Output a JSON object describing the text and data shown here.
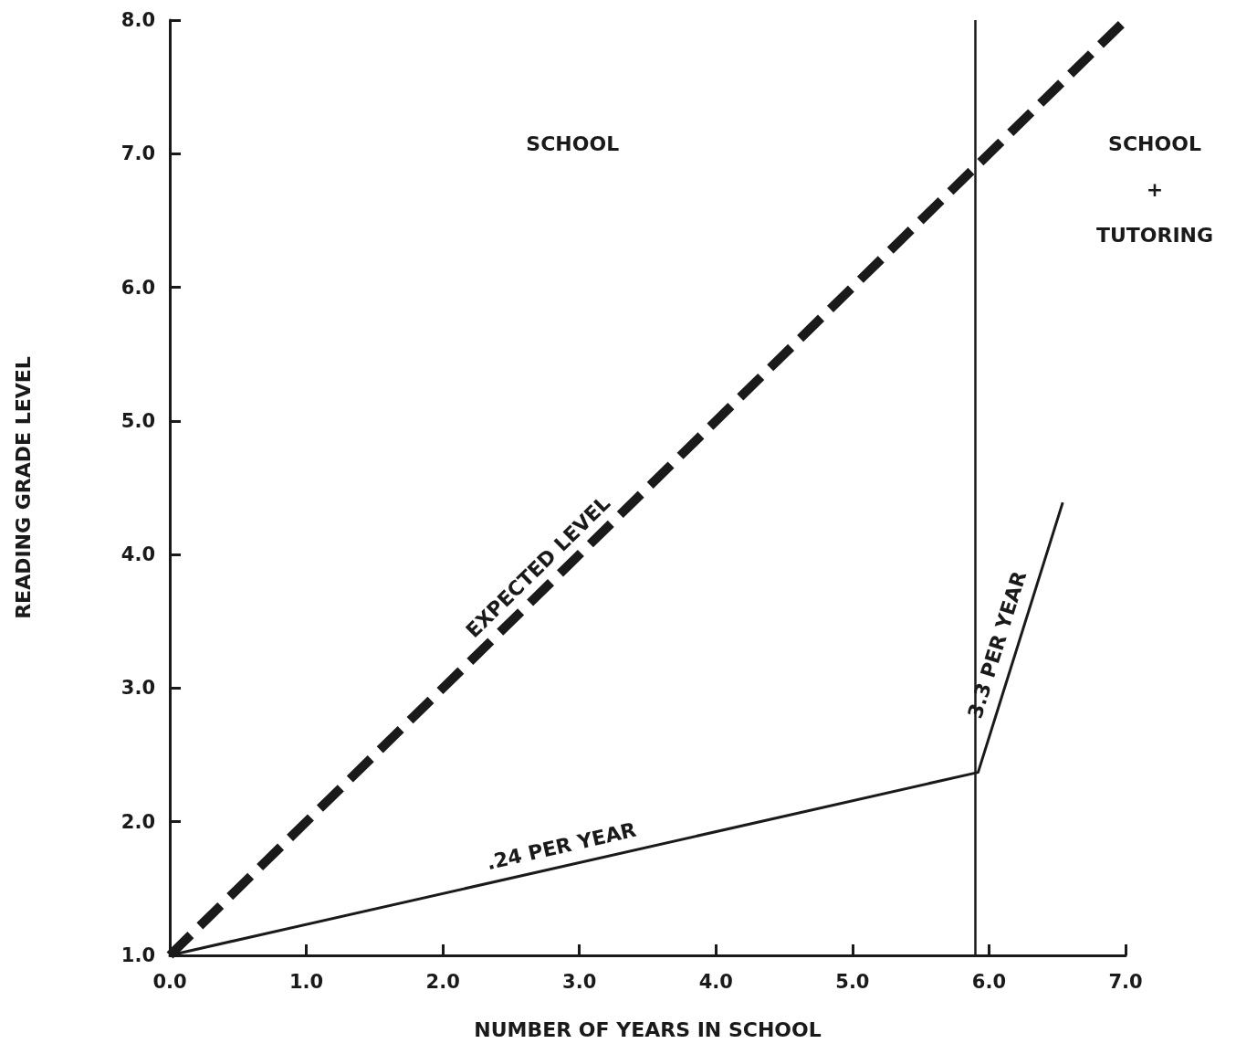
{
  "chart_data": {
    "type": "line",
    "xlabel": "NUMBER OF YEARS IN SCHOOL",
    "ylabel": "READING GRADE LEVEL",
    "xlim": [
      0,
      7
    ],
    "ylim": [
      1,
      8
    ],
    "xticks": [
      {
        "value": 0,
        "label": "0.0"
      },
      {
        "value": 1,
        "label": "1.0"
      },
      {
        "value": 2,
        "label": "2.0"
      },
      {
        "value": 3,
        "label": "3.0"
      },
      {
        "value": 4,
        "label": "4.0"
      },
      {
        "value": 5,
        "label": "5.0"
      },
      {
        "value": 6,
        "label": "6.0"
      },
      {
        "value": 7,
        "label": "7.0"
      }
    ],
    "yticks": [
      {
        "value": 1,
        "label": "1.0"
      },
      {
        "value": 2,
        "label": "2.0"
      },
      {
        "value": 3,
        "label": "3.0"
      },
      {
        "value": 4,
        "label": "4.0"
      },
      {
        "value": 5,
        "label": "5.0"
      },
      {
        "value": 6,
        "label": "6.0"
      },
      {
        "value": 7,
        "label": "7.0"
      },
      {
        "value": 8,
        "label": "8.0"
      }
    ],
    "series": [
      {
        "color": "#1a1a1a",
        "x": [
          0,
          7
        ],
        "values": [
          1,
          8
        ],
        "line_style": "dashed"
      },
      {
        "color": "#1a1a1a",
        "x": [
          0,
          5.92,
          6.54
        ],
        "values": [
          1,
          2.37,
          4.39
        ],
        "line_style": "solid"
      }
    ],
    "ref_lines": [
      {
        "axis": "x",
        "value": 5.9,
        "color": "#1a1a1a"
      }
    ],
    "annotations": [
      "SCHOOL",
      "SCHOOL\n+\nTUTORING",
      {
        "text": "EXPECTED LEVEL",
        "x": 2.8,
        "y": 3.8
      },
      {
        "text": ".24 PER YEAR",
        "x": 2.9,
        "y": 1.67
      },
      {
        "text": "3.3 PER YEAR",
        "x": 6.2,
        "y": 3.28
      }
    ],
    "marker": "none",
    "grid": false
  }
}
